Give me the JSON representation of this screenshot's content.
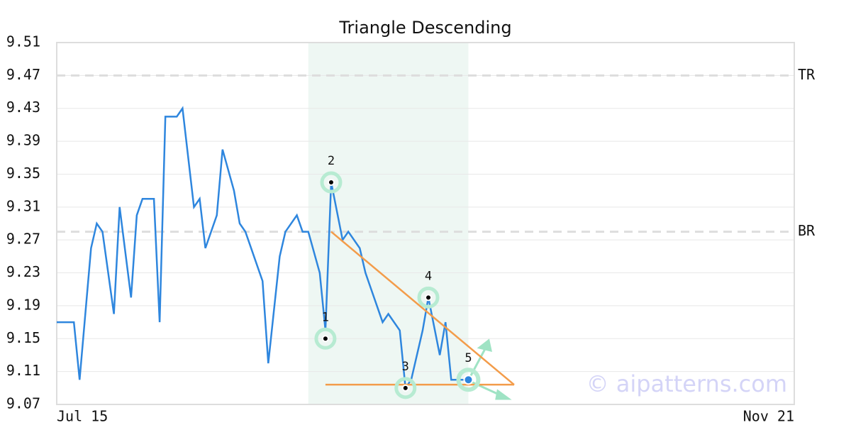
{
  "chart_data": {
    "type": "line",
    "title": "Triangle Descending",
    "x": [
      0,
      3,
      4,
      6,
      7,
      8,
      10,
      11,
      13,
      14,
      15,
      17,
      18,
      19,
      21,
      22,
      24,
      25,
      26,
      28,
      29,
      31,
      32,
      33,
      36,
      37,
      39,
      40,
      42,
      43,
      44,
      46,
      47,
      48,
      50,
      51,
      53,
      54,
      55,
      57,
      58,
      60,
      61,
      62,
      64,
      65,
      67,
      68,
      69,
      72
    ],
    "values": [
      9.17,
      9.17,
      9.1,
      9.26,
      9.29,
      9.28,
      9.18,
      9.31,
      9.2,
      9.3,
      9.32,
      9.32,
      9.17,
      9.42,
      9.42,
      9.43,
      9.31,
      9.32,
      9.26,
      9.3,
      9.38,
      9.33,
      9.29,
      9.28,
      9.22,
      9.12,
      9.25,
      9.28,
      9.3,
      9.28,
      9.28,
      9.23,
      9.16,
      9.34,
      9.27,
      9.28,
      9.26,
      9.23,
      9.21,
      9.17,
      9.18,
      9.16,
      9.09,
      9.1,
      9.16,
      9.2,
      9.13,
      9.17,
      9.1,
      9.1
    ],
    "color": "#2e86de",
    "xlim": [
      0,
      129
    ],
    "xticks": [
      {
        "value": 0,
        "label": "Jul 15"
      },
      {
        "value": 129,
        "label": "Nov 21"
      }
    ],
    "ylim": [
      9.07,
      9.51
    ],
    "yticks": [
      9.07,
      9.11,
      9.15,
      9.19,
      9.23,
      9.27,
      9.31,
      9.35,
      9.39,
      9.43,
      9.47,
      9.51
    ],
    "grid": true,
    "highlight": [
      44,
      72
    ],
    "highlight_color": "#eef7f3",
    "levels": [
      {
        "label": "TR",
        "value": 9.47
      },
      {
        "label": "BR",
        "value": 9.28
      }
    ],
    "pivots": [
      {
        "label": "1",
        "x": 47,
        "y": 9.15
      },
      {
        "label": "2",
        "x": 48,
        "y": 9.34
      },
      {
        "label": "3",
        "x": 61,
        "y": 9.09
      },
      {
        "label": "4",
        "x": 65,
        "y": 9.2
      },
      {
        "label": "5",
        "x": 72,
        "y": 9.1
      }
    ],
    "trendlines": [
      {
        "x": [
          48,
          80
        ],
        "y": [
          9.28,
          9.094
        ]
      },
      {
        "x": [
          47,
          80
        ],
        "y": [
          9.094,
          9.094
        ]
      }
    ],
    "trend_color": "#f39c4a",
    "watermark": "© aipatterns.com"
  }
}
